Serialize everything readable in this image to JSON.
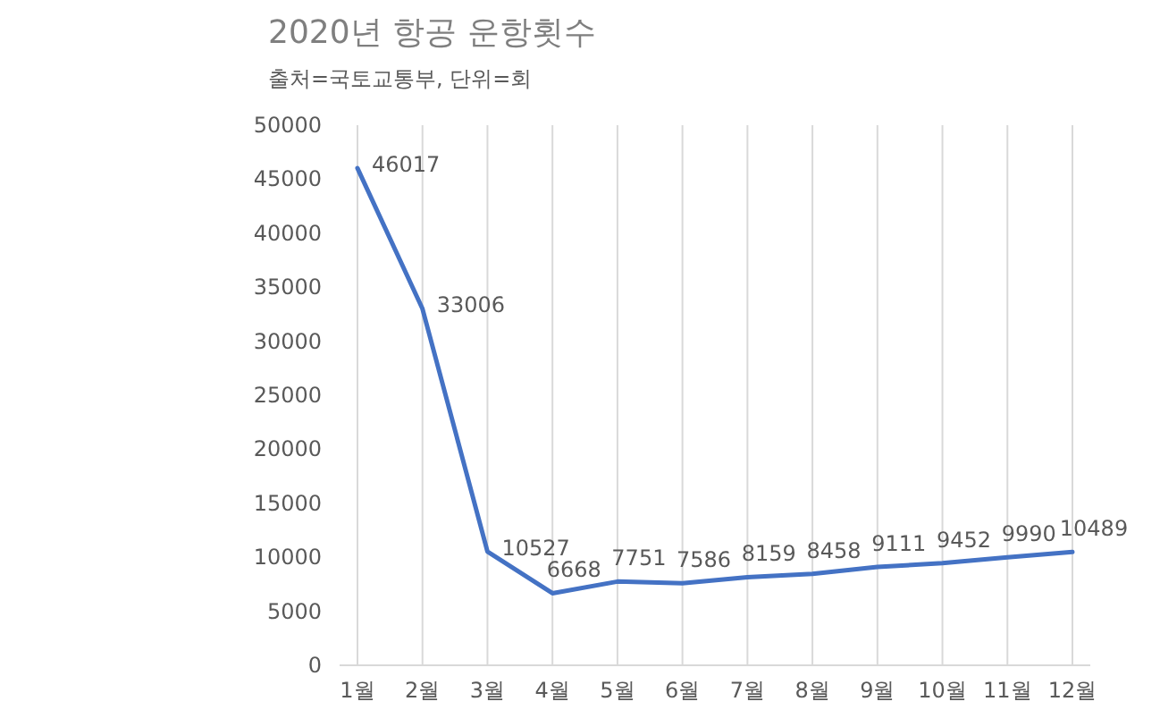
{
  "chart_data": {
    "type": "line",
    "title": "2020년 항공 운항횟수",
    "subtitle": "출처=국토교통부, 단위=회",
    "categories": [
      "1월",
      "2월",
      "3월",
      "4월",
      "5월",
      "6월",
      "7월",
      "8월",
      "9월",
      "10월",
      "11월",
      "12월"
    ],
    "series": [
      {
        "color": "#4472c4",
        "values": [
          46017,
          33006,
          10527,
          6668,
          7751,
          7586,
          8159,
          8458,
          9111,
          9452,
          9990,
          10489
        ]
      }
    ],
    "ylim": [
      0,
      50000
    ],
    "yticks": [
      0,
      5000,
      10000,
      15000,
      20000,
      25000,
      30000,
      35000,
      40000,
      45000,
      50000
    ],
    "grid": "x",
    "data_labels": true,
    "marker": "none",
    "line_style": "solid"
  }
}
